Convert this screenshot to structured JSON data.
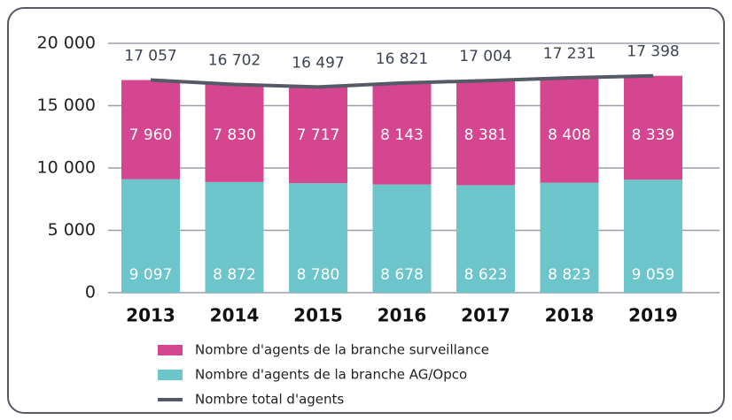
{
  "chart_data": {
    "type": "bar",
    "stacked": true,
    "categories": [
      "2013",
      "2014",
      "2015",
      "2016",
      "2017",
      "2018",
      "2019"
    ],
    "series": [
      {
        "name": "Nombre d'agents de la branche AG/Opco",
        "color": "#6cc5cb",
        "values": [
          9097,
          8872,
          8780,
          8678,
          8623,
          8823,
          9059
        ],
        "value_labels": [
          "9 097",
          "8 872",
          "8 780",
          "8 678",
          "8 623",
          "8 823",
          "9 059"
        ]
      },
      {
        "name": "Nombre d'agents de la branche surveillance",
        "color": "#d4468f",
        "values": [
          7960,
          7830,
          7717,
          8143,
          8381,
          8408,
          8339
        ],
        "value_labels": [
          "7 960",
          "7 830",
          "7 717",
          "8 143",
          "8 381",
          "8 408",
          "8 339"
        ]
      },
      {
        "name": "Nombre total d'agents",
        "color": "#555a66",
        "type": "line",
        "values": [
          17057,
          16702,
          16497,
          16821,
          17004,
          17231,
          17398
        ],
        "value_labels": [
          "17 057",
          "16 702",
          "16 497",
          "16 821",
          "17 004",
          "17 231",
          "17 398"
        ]
      }
    ],
    "legend_order": [
      1,
      0,
      2
    ],
    "ylim": [
      0,
      20000
    ],
    "yticks": [
      0,
      {
        "value": 5000,
        "label": "5 000"
      },
      {
        "value": 10000,
        "label": "10 000"
      },
      {
        "value": 15000,
        "label": "15 000"
      },
      {
        "value": 20000,
        "label": "20 000"
      }
    ],
    "grid": true
  }
}
